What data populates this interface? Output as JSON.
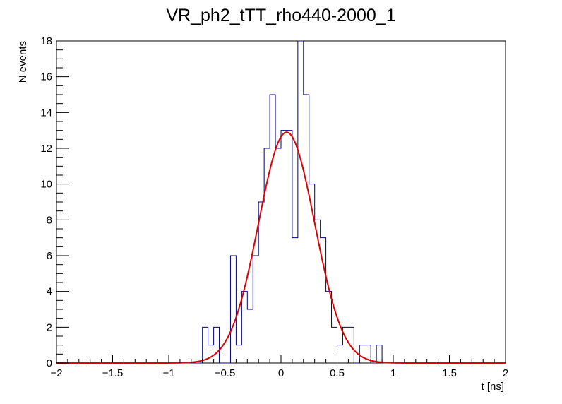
{
  "chart_data": {
    "type": "histogram",
    "title": "VR_ph2_tTT_rho440-2000_1",
    "xlabel": "t [ns]",
    "ylabel": "N events",
    "xlim": [
      -2,
      2
    ],
    "ylim": [
      0,
      18
    ],
    "xticks": [
      -2,
      -1.5,
      -1,
      -0.5,
      0,
      0.5,
      1,
      1.5,
      2
    ],
    "xtick_labels": [
      "−2",
      "−1.5",
      "−1",
      "−0.5",
      "0",
      "0.5",
      "1",
      "1.5",
      "2"
    ],
    "yticks": [
      0,
      2,
      4,
      6,
      8,
      10,
      12,
      14,
      16,
      18
    ],
    "ytick_labels": [
      "0",
      "2",
      "4",
      "6",
      "8",
      "10",
      "12",
      "14",
      "16",
      "18"
    ],
    "bin_edges_start": -2.0,
    "bin_width": 0.05,
    "counts": [
      0,
      0,
      0,
      0,
      0,
      0,
      0,
      0,
      0,
      0,
      0,
      0,
      0,
      0,
      0,
      0,
      0,
      0,
      0,
      0,
      0,
      0,
      0,
      0,
      0,
      0,
      2,
      1,
      2,
      0,
      0,
      6,
      1,
      4,
      3,
      6,
      9,
      12,
      15,
      12,
      13,
      13,
      7,
      18,
      15,
      10,
      8,
      7,
      4,
      2,
      1,
      2,
      2,
      0,
      1,
      1,
      0,
      1,
      0,
      0,
      0,
      0,
      0,
      0,
      0,
      0,
      0,
      0,
      0,
      0,
      0,
      0,
      0,
      0,
      0,
      0,
      0,
      0,
      0,
      0
    ],
    "fit": {
      "type": "gaussian",
      "amplitude": 12.9,
      "mean": 0.05,
      "sigma": 0.25
    },
    "colors": {
      "histogram": "#000080",
      "fit": "#e00000"
    },
    "grid": false,
    "legend": "none"
  }
}
